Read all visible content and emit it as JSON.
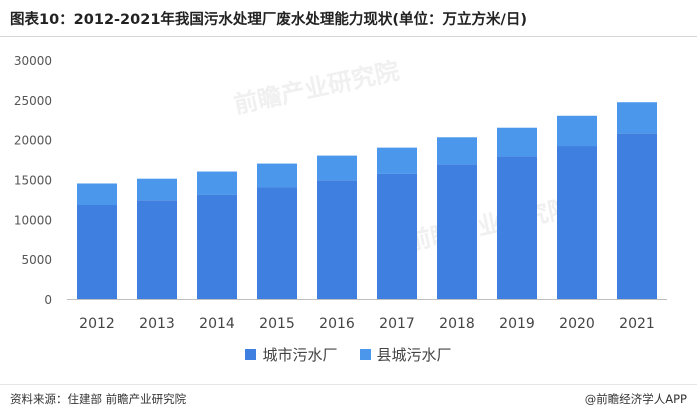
{
  "title": "图表10：2012-2021年我国污水处理厂废水处理能力现状(单位：万立方米/日)",
  "source": "资料来源：住建部 前瞻产业研究院",
  "brand": "@前瞻经济学人APP",
  "watermark": "前瞻产业研究院",
  "colors": {
    "city": "#3f7fe0",
    "county": "#4a97ec",
    "axis": "#bfbfbf"
  },
  "chart_data": {
    "type": "bar",
    "stacked": true,
    "categories": [
      "2012",
      "2013",
      "2014",
      "2015",
      "2016",
      "2017",
      "2018",
      "2019",
      "2020",
      "2021"
    ],
    "series": [
      {
        "name": "城市污水厂",
        "values": [
          11800,
          12400,
          13100,
          14000,
          14900,
          15700,
          16900,
          17900,
          19200,
          20800
        ]
      },
      {
        "name": "县城污水厂",
        "values": [
          2700,
          2700,
          2900,
          3000,
          3100,
          3300,
          3400,
          3600,
          3800,
          3900
        ]
      }
    ],
    "yticks": [
      0,
      5000,
      10000,
      15000,
      20000,
      25000,
      30000
    ],
    "ylim": [
      0,
      30000
    ],
    "legend_position": "bottom",
    "grid": false
  }
}
